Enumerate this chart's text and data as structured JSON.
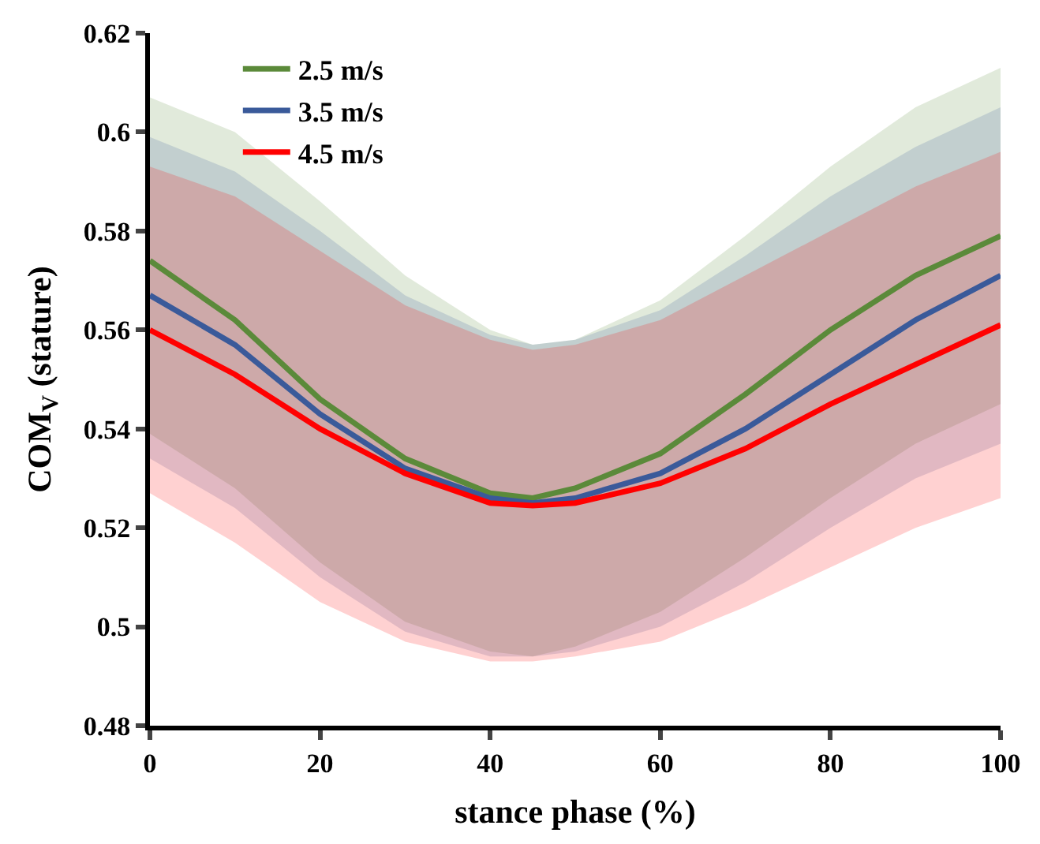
{
  "chart_data": {
    "type": "line",
    "xlabel": "stance phase (%)",
    "ylabel": "COM$_{V}$ (stature)",
    "x": [
      0,
      10,
      20,
      30,
      40,
      45,
      50,
      60,
      70,
      80,
      90,
      100
    ],
    "xlim": [
      0,
      100
    ],
    "xticks": [
      0,
      20,
      40,
      60,
      80,
      100
    ],
    "ylim": [
      0.48,
      0.62
    ],
    "yticks": [
      0.48,
      0.5,
      0.52,
      0.54,
      0.56,
      0.58,
      0.6,
      0.62
    ],
    "legend": "top left",
    "marker": "none",
    "line_style": "solid",
    "series": [
      {
        "name": "2.5 m/s",
        "color": "#5b8a3a",
        "values": [
          0.574,
          0.562,
          0.546,
          0.534,
          0.527,
          0.526,
          0.528,
          0.535,
          0.547,
          0.56,
          0.571,
          0.579
        ],
        "upper": [
          0.607,
          0.6,
          0.586,
          0.571,
          0.56,
          0.557,
          0.558,
          0.566,
          0.579,
          0.593,
          0.605,
          0.613
        ],
        "lower": [
          0.539,
          0.528,
          0.513,
          0.501,
          0.495,
          0.494,
          0.496,
          0.503,
          0.514,
          0.526,
          0.537,
          0.545
        ]
      },
      {
        "name": "3.5 m/s",
        "color": "#3a5a9a",
        "values": [
          0.567,
          0.557,
          0.543,
          0.532,
          0.526,
          0.525,
          0.526,
          0.531,
          0.54,
          0.551,
          0.562,
          0.571
        ],
        "upper": [
          0.599,
          0.592,
          0.58,
          0.567,
          0.559,
          0.557,
          0.558,
          0.564,
          0.575,
          0.587,
          0.597,
          0.605
        ],
        "lower": [
          0.534,
          0.524,
          0.51,
          0.499,
          0.494,
          0.494,
          0.495,
          0.5,
          0.509,
          0.52,
          0.53,
          0.537
        ]
      },
      {
        "name": "4.5 m/s",
        "color": "#ff0000",
        "values": [
          0.56,
          0.551,
          0.54,
          0.531,
          0.525,
          0.5245,
          0.525,
          0.529,
          0.536,
          0.545,
          0.553,
          0.561
        ],
        "upper": [
          0.593,
          0.587,
          0.576,
          0.565,
          0.558,
          0.556,
          0.557,
          0.562,
          0.571,
          0.58,
          0.589,
          0.596
        ],
        "lower": [
          0.527,
          0.517,
          0.505,
          0.497,
          0.493,
          0.493,
          0.494,
          0.497,
          0.504,
          0.512,
          0.52,
          0.526
        ]
      }
    ]
  }
}
